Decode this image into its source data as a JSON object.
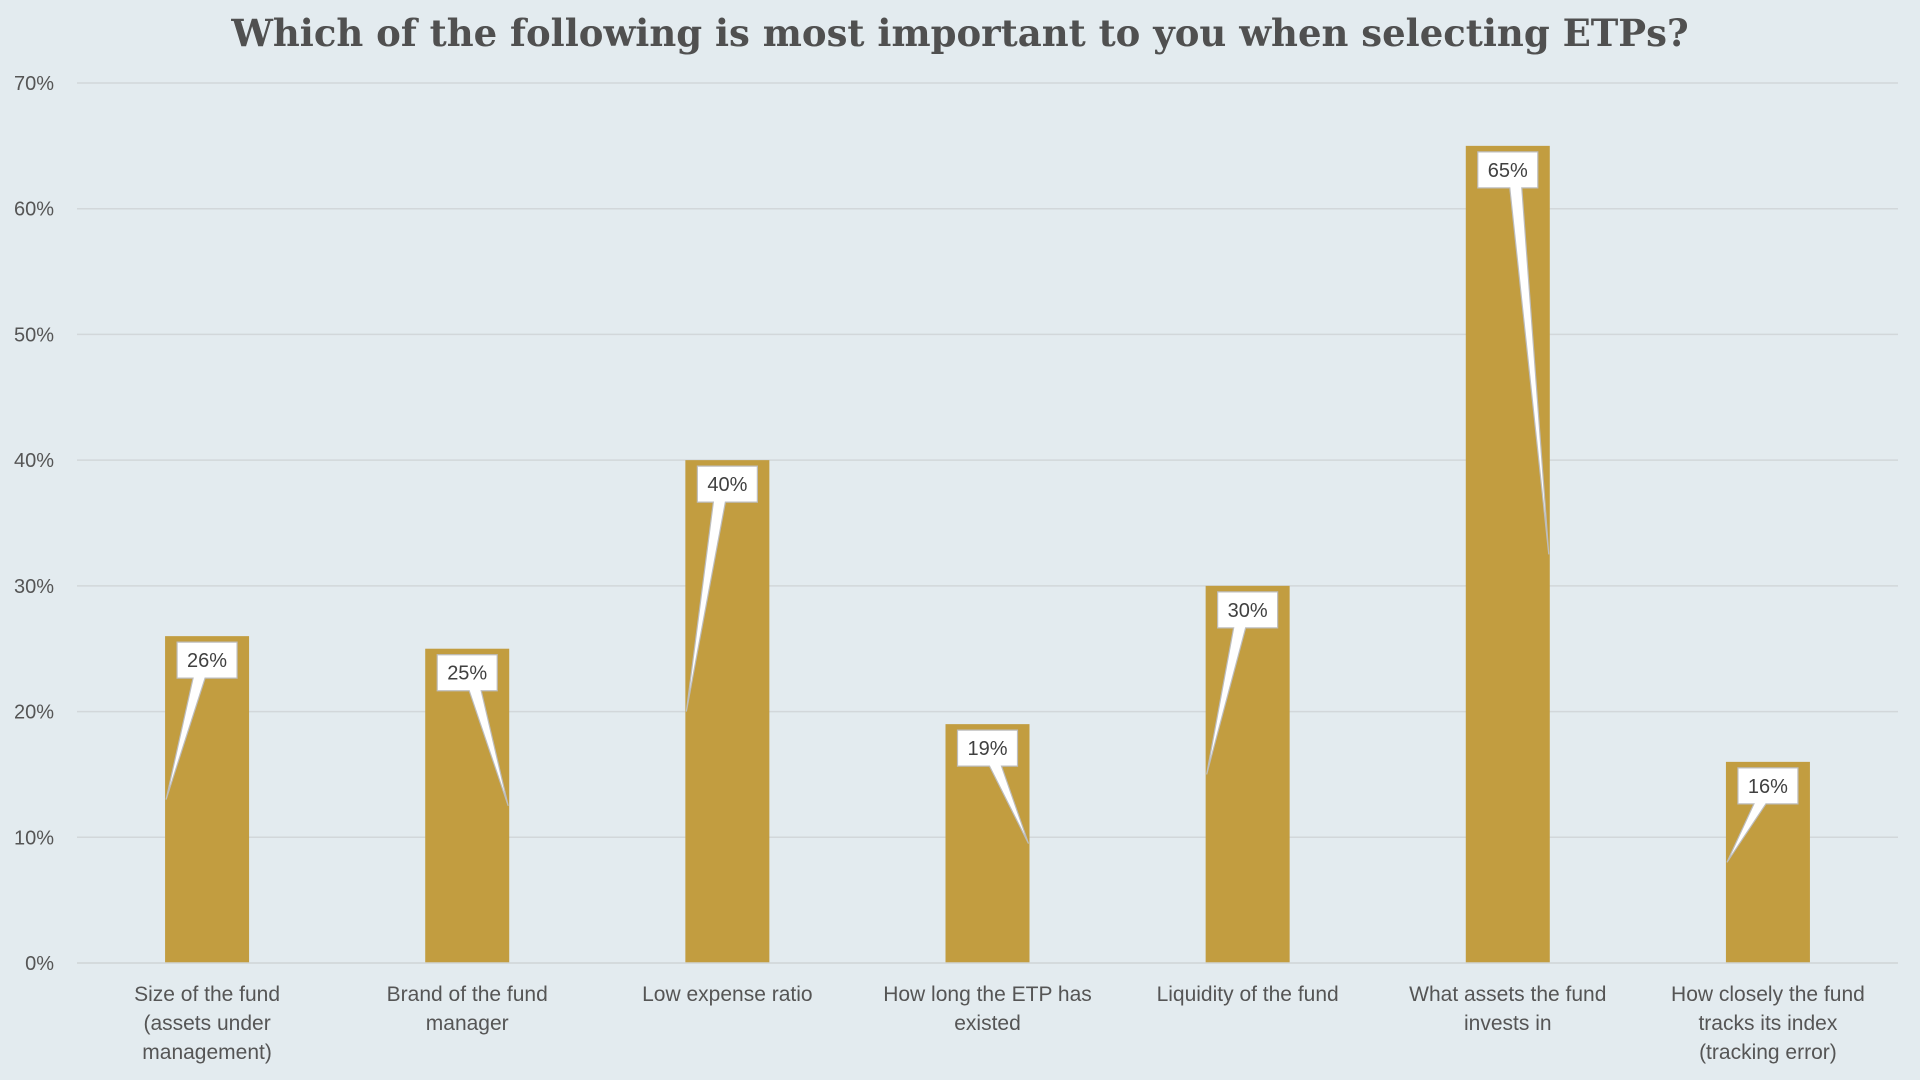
{
  "chart_data": {
    "type": "bar",
    "title": "Which of the following is most important to you when selecting ETPs?",
    "categories": [
      "Size of the fund (assets under management)",
      "Brand of the fund manager",
      "Low expense ratio",
      "How long the ETP has existed",
      "Liquidity of the fund",
      "What assets the fund invests in",
      "How closely the fund tracks its index (tracking error)"
    ],
    "values": [
      26,
      25,
      40,
      19,
      30,
      65,
      16
    ],
    "data_labels": [
      "26%",
      "25%",
      "40%",
      "19%",
      "30%",
      "65%",
      "16%"
    ],
    "ylim": [
      0,
      70
    ],
    "yticks": [
      0,
      10,
      20,
      30,
      40,
      50,
      60,
      70
    ],
    "ytick_labels": [
      "0%",
      "10%",
      "20%",
      "30%",
      "40%",
      "50%",
      "60%",
      "70%"
    ],
    "xlabel": "",
    "ylabel": "",
    "grid": true,
    "legend": "none",
    "colors": {
      "bar": "#c29d40",
      "background": "#e3ebef",
      "gridline": "#d2d7da"
    }
  }
}
